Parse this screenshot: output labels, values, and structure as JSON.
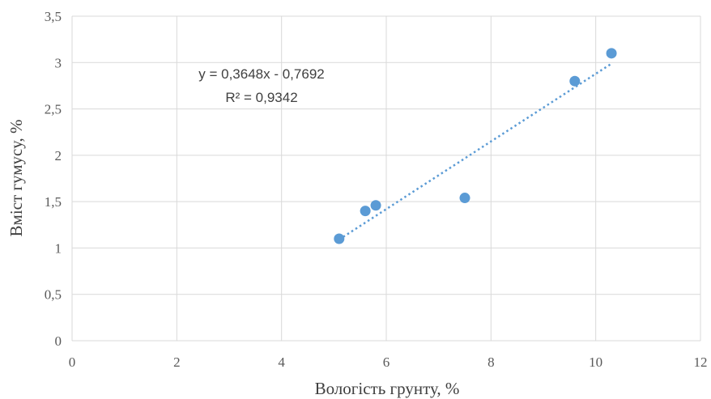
{
  "chart_data": {
    "type": "scatter",
    "xlabel": "Вологість грунту,  %",
    "ylabel": "Вміст гумусу,  %",
    "xlim": [
      0,
      12
    ],
    "ylim": [
      0,
      3.5
    ],
    "x_ticks": [
      "0",
      "2",
      "4",
      "6",
      "8",
      "10",
      "12"
    ],
    "y_ticks": [
      "0",
      "0,5",
      "1",
      "1,5",
      "2",
      "2,5",
      "3",
      "3,5"
    ],
    "grid": true,
    "points": [
      {
        "x": 5.1,
        "y": 1.1
      },
      {
        "x": 5.6,
        "y": 1.4
      },
      {
        "x": 5.8,
        "y": 1.46
      },
      {
        "x": 7.5,
        "y": 1.54
      },
      {
        "x": 9.6,
        "y": 2.8
      },
      {
        "x": 10.3,
        "y": 3.1
      }
    ],
    "trendline": {
      "slope": 0.3648,
      "intercept": -0.7692,
      "x_range": [
        5.1,
        10.3
      ],
      "equation": "y = 0,3648x - 0,7692",
      "r_squared": "R² = 0,9342"
    },
    "colors": {
      "marker": "#5b9bd5",
      "trendline": "#5b9bd5",
      "grid": "#d9d9d9"
    }
  }
}
